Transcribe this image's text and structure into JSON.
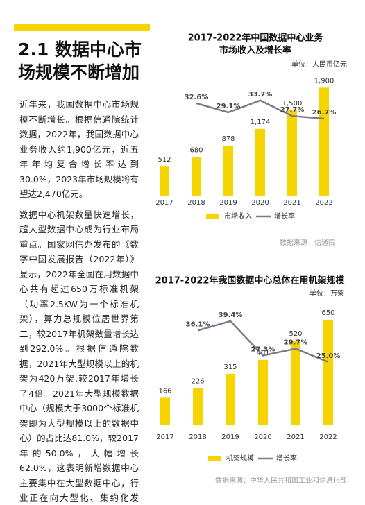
{
  "heading": [
    "2.1 数据中心市",
    "场规模不断增加"
  ],
  "paragraphs": [
    "近年来，我国数据中心市场规模不断增长。根据信通院统计数据，2022年，我国数据中心业务收入约1,900亿元，近五年年均复合增长率达到30.0%，2023年市场规模将有望达2,470亿元。",
    "数据中心机架数量快速增长，超大型数据中心成为行业布局重点。国家网信办发布的《数字中国发展报告（2022年）》显示，2022年全国在用数据中心共有超过650万标准机架（功率2.5KW为一个标准机架），算力总规模位居世界第二，较2017年机架数量增长达到292.0%。根据信通院数据，2021年大型规模以上的机架为420万架,较2017年增长了4倍。2021年大型规模数据中心（规模大于3000个标准机架即为大型规模以上的数据中心）的占比达81.0%，较2017年的50.0%，大幅增长62.0%，这表明新增数据中心主要集中在大型数据中心，行业正在向大型化、集约化发展。"
  ],
  "chart_data": [
    {
      "type": "bar",
      "title": [
        "2017-2022年中国数据中心业务",
        "市场收入及增长率"
      ],
      "unit": "单位：人民币亿元",
      "categories": [
        "2017",
        "2018",
        "2019",
        "2020",
        "2021",
        "2022"
      ],
      "series": [
        {
          "name": "市场收入",
          "color": "#f5d400",
          "values": [
            512,
            680,
            878,
            1174,
            1500,
            1900
          ],
          "value_labels": [
            "512",
            "680",
            "878",
            "1,174",
            "1,500",
            "1,900"
          ]
        },
        {
          "name": "增长率",
          "color": "#7b7b8c",
          "axis": "y2",
          "type": "line",
          "values": [
            null,
            32.6,
            29.1,
            33.7,
            27.7,
            26.7
          ],
          "value_labels": [
            null,
            "32.6%",
            "29.1%",
            "33.7%",
            "27.7%",
            "26.7%"
          ]
        }
      ],
      "ylim": [
        0,
        2100
      ],
      "y2lim": [
        -3,
        43
      ],
      "legend": "bottom",
      "source": "数据来源：信通院"
    },
    {
      "type": "bar",
      "title": [
        "2017-2022年我国数据中心总体在用机架规模"
      ],
      "unit": "单位：万架",
      "categories": [
        "2017",
        "2018",
        "2019",
        "2020",
        "2021",
        "2022"
      ],
      "series": [
        {
          "name": "机架规模",
          "color": "#f5d400",
          "values": [
            166,
            226,
            315,
            401,
            520,
            650
          ]
        },
        {
          "name": "增长率",
          "color": "#7b7b8c",
          "axis": "y2",
          "type": "line",
          "values": [
            null,
            36.1,
            39.4,
            27.3,
            29.7,
            25.0
          ],
          "value_labels": [
            null,
            "36.1%",
            "39.4%",
            "27.3%",
            "29.7%",
            "25.0%"
          ]
        }
      ],
      "ylim": [
        0,
        740
      ],
      "y2lim": [
        3,
        45
      ],
      "legend": "bottom",
      "source": "数据来源：中华人民共和国工业和信息化部"
    }
  ]
}
